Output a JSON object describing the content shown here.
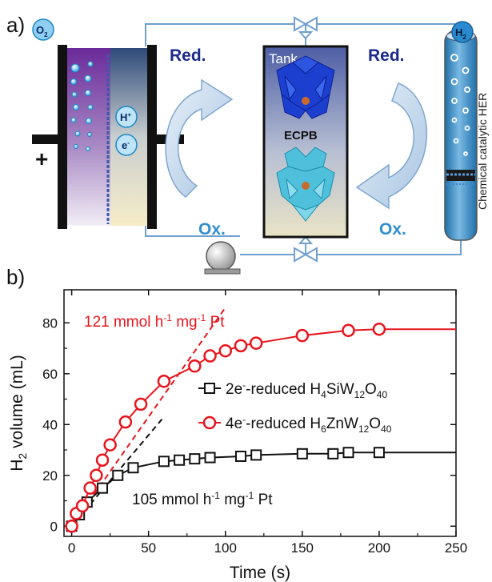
{
  "panel_a": {
    "label": "a)",
    "o2": {
      "base": "O",
      "sub": "2"
    },
    "h2": {
      "base": "H",
      "sub": "2"
    },
    "h_plus": {
      "base": "H",
      "sup": "+"
    },
    "e_minus": {
      "base": "e",
      "sup": "-"
    },
    "plus_sign": "+",
    "minus_sign": "−",
    "red_left": "Red.",
    "red_right": "Red.",
    "ox_left": "Ox.",
    "ox_right": "Ox.",
    "tank_label": "Tank",
    "ecpb_label": "ECPB",
    "her_label": "Chemical catalytic HER",
    "colors": {
      "dark_blue": "#1a2a8c",
      "light_blue": "#2f8fd0",
      "pipe": "#6f9fd0"
    }
  },
  "panel_b": {
    "label": "b)"
  },
  "chart_data": {
    "type": "scatter",
    "xlabel": "Time (s)",
    "ylabel": {
      "base": "H",
      "sub": "2",
      "rest": " volume (mL)"
    },
    "xlim": [
      -5,
      250
    ],
    "ylim": [
      -4,
      93
    ],
    "xticks": [
      0,
      50,
      100,
      150,
      200,
      250
    ],
    "yticks": [
      0,
      20,
      40,
      60,
      80
    ],
    "series": [
      {
        "name": "2e⁻-reduced H₄SiW₁₂O₄₀",
        "legend": [
          {
            "t": "2e",
            "s": ""
          },
          {
            "t": "-",
            "s": "sup"
          },
          {
            "t": "-reduced H",
            "s": ""
          },
          {
            "t": "4",
            "s": "sub"
          },
          {
            "t": "SiW",
            "s": ""
          },
          {
            "t": "12",
            "s": "sub"
          },
          {
            "t": "O",
            "s": ""
          },
          {
            "t": "40",
            "s": "sub"
          }
        ],
        "marker": "square",
        "color": "#111111",
        "x": [
          0,
          5,
          10,
          20,
          30,
          40,
          60,
          70,
          80,
          90,
          110,
          120,
          150,
          170,
          180,
          200
        ],
        "y": [
          0,
          4.5,
          9.5,
          15,
          20,
          23,
          25.5,
          26,
          26.5,
          27,
          27.5,
          28,
          28.5,
          28.5,
          29,
          29
        ],
        "tail": 29
      },
      {
        "name": "4e⁻-reduced H₆ZnW₁₂O₄₀",
        "legend": [
          {
            "t": "4e",
            "s": ""
          },
          {
            "t": "-",
            "s": "sup"
          },
          {
            "t": "-reduced H",
            "s": ""
          },
          {
            "t": "6",
            "s": "sub"
          },
          {
            "t": "ZnW",
            "s": ""
          },
          {
            "t": "12",
            "s": "sub"
          },
          {
            "t": "O",
            "s": ""
          },
          {
            "t": "40",
            "s": "sub"
          }
        ],
        "marker": "circle",
        "color": "#e8141c",
        "x": [
          0,
          3,
          7,
          12,
          16,
          20,
          25,
          35,
          45,
          60,
          80,
          90,
          100,
          110,
          120,
          150,
          180,
          200
        ],
        "y": [
          0,
          5,
          8,
          15,
          20,
          26,
          32,
          41,
          48,
          57,
          63,
          67,
          69,
          71,
          72,
          75,
          77,
          77.5
        ],
        "tail": 77.5
      }
    ],
    "annotations": [
      {
        "parts": [
          {
            "t": "121 mmol h",
            "s": ""
          },
          {
            "t": "-1",
            "s": "sup"
          },
          {
            "t": " mg",
            "s": ""
          },
          {
            "t": "-1",
            "s": "sup"
          },
          {
            "t": " Pt",
            "s": ""
          }
        ],
        "color": "#e8141c"
      },
      {
        "parts": [
          {
            "t": "105 mmol h",
            "s": ""
          },
          {
            "t": "-1",
            "s": "sup"
          },
          {
            "t": " mg",
            "s": ""
          },
          {
            "t": "-1",
            "s": "sup"
          },
          {
            "t": " Pt",
            "s": ""
          }
        ],
        "color": "#111111"
      }
    ],
    "trend_lines": [
      {
        "color": "#e8141c",
        "x": [
          0,
          100
        ],
        "y": [
          0,
          86
        ]
      },
      {
        "color": "#111111",
        "x": [
          0,
          60
        ],
        "y": [
          0,
          43
        ]
      }
    ]
  }
}
